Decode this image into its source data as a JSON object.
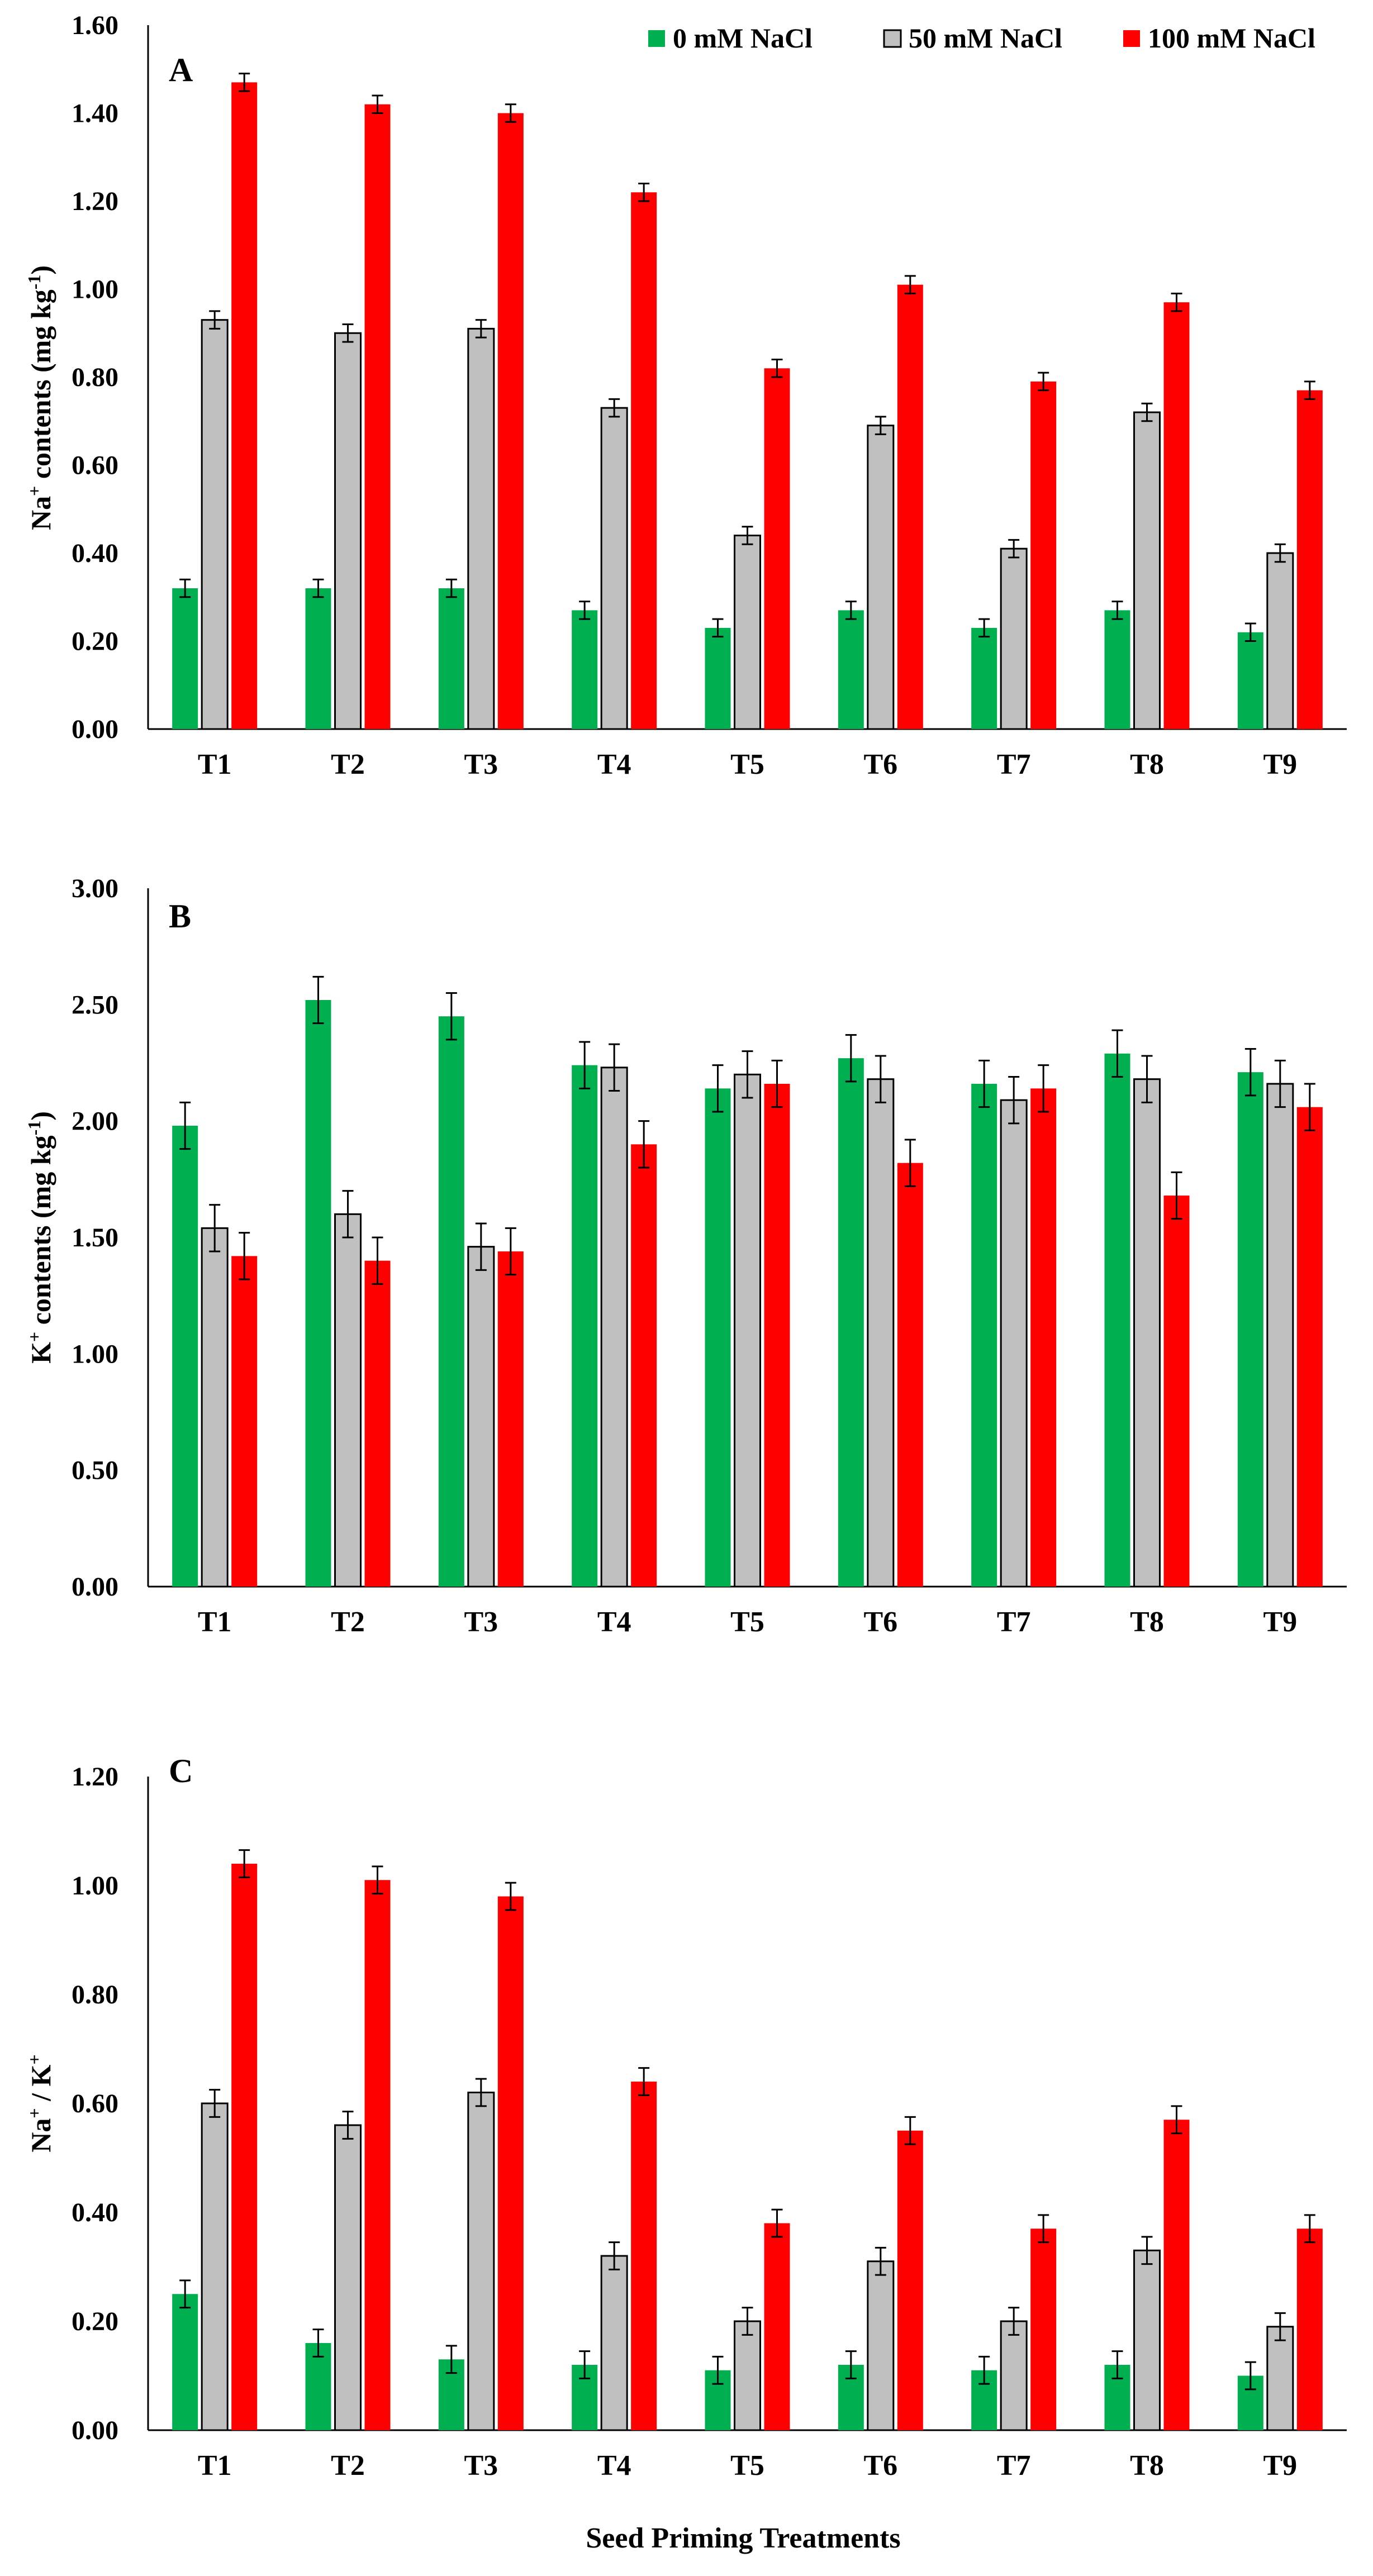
{
  "figure": {
    "xlabel": "Seed Priming Treatments",
    "legend": [
      {
        "name": "0 mM NaCl",
        "color": "#00b050"
      },
      {
        "name": "50 mM NaCl",
        "color": "#c0c0c0"
      },
      {
        "name": "100 mM NaCl",
        "color": "#ff0000"
      }
    ]
  },
  "chart_data": [
    {
      "type": "bar",
      "panel": "A",
      "ylabel": {
        "main": "Na",
        "sup1": "+",
        "mid": " contents (mg kg",
        "sup2": "-1",
        "end": ")"
      },
      "ylim": [
        0,
        1.6
      ],
      "yticks": [
        "0.00",
        "0.20",
        "0.40",
        "0.60",
        "0.80",
        "1.00",
        "1.20",
        "1.40",
        "1.60"
      ],
      "categories": [
        "T1",
        "T2",
        "T3",
        "T4",
        "T5",
        "T6",
        "T7",
        "T8",
        "T9"
      ],
      "series": [
        {
          "name": "0 mM NaCl",
          "values": [
            0.32,
            0.32,
            0.32,
            0.27,
            0.23,
            0.27,
            0.23,
            0.27,
            0.22
          ],
          "errors": [
            0.02,
            0.02,
            0.02,
            0.02,
            0.02,
            0.02,
            0.02,
            0.02,
            0.02
          ]
        },
        {
          "name": "50 mM NaCl",
          "values": [
            0.93,
            0.9,
            0.91,
            0.73,
            0.44,
            0.69,
            0.41,
            0.72,
            0.4
          ],
          "errors": [
            0.02,
            0.02,
            0.02,
            0.02,
            0.02,
            0.02,
            0.02,
            0.02,
            0.02
          ]
        },
        {
          "name": "100 mM NaCl",
          "values": [
            1.47,
            1.42,
            1.4,
            1.22,
            0.82,
            1.01,
            0.79,
            0.97,
            0.77
          ],
          "errors": [
            0.02,
            0.02,
            0.02,
            0.02,
            0.02,
            0.02,
            0.02,
            0.02,
            0.02
          ]
        }
      ]
    },
    {
      "type": "bar",
      "panel": "B",
      "ylabel": {
        "main": "K",
        "sup1": "+",
        "mid": " contents (mg kg",
        "sup2": "-1",
        "end": ")"
      },
      "ylim": [
        0,
        3.0
      ],
      "yticks": [
        "0.00",
        "0.50",
        "1.00",
        "1.50",
        "2.00",
        "2.50",
        "3.00"
      ],
      "categories": [
        "T1",
        "T2",
        "T3",
        "T4",
        "T5",
        "T6",
        "T7",
        "T8",
        "T9"
      ],
      "series": [
        {
          "name": "0 mM NaCl",
          "values": [
            1.98,
            2.52,
            2.45,
            2.24,
            2.14,
            2.27,
            2.16,
            2.29,
            2.21
          ],
          "errors": [
            0.1,
            0.1,
            0.1,
            0.1,
            0.1,
            0.1,
            0.1,
            0.1,
            0.1
          ]
        },
        {
          "name": "50 mM NaCl",
          "values": [
            1.54,
            1.6,
            1.46,
            2.23,
            2.2,
            2.18,
            2.09,
            2.18,
            2.16
          ],
          "errors": [
            0.1,
            0.1,
            0.1,
            0.1,
            0.1,
            0.1,
            0.1,
            0.1,
            0.1
          ]
        },
        {
          "name": "100 mM NaCl",
          "values": [
            1.42,
            1.4,
            1.44,
            1.9,
            2.16,
            1.82,
            2.14,
            1.68,
            2.06
          ],
          "errors": [
            0.1,
            0.1,
            0.1,
            0.1,
            0.1,
            0.1,
            0.1,
            0.1,
            0.1
          ]
        }
      ]
    },
    {
      "type": "bar",
      "panel": "C",
      "ylabel": {
        "main": "Na",
        "sup1": "+",
        "mid": " / K",
        "sup2": "+",
        "end": ""
      },
      "ylim": [
        0,
        1.2
      ],
      "yticks": [
        "0.00",
        "0.20",
        "0.40",
        "0.60",
        "0.80",
        "1.00",
        "1.20"
      ],
      "categories": [
        "T1",
        "T2",
        "T3",
        "T4",
        "T5",
        "T6",
        "T7",
        "T8",
        "T9"
      ],
      "series": [
        {
          "name": "0 mM NaCl",
          "values": [
            0.25,
            0.16,
            0.13,
            0.12,
            0.11,
            0.12,
            0.11,
            0.12,
            0.1
          ],
          "errors": [
            0.025,
            0.025,
            0.025,
            0.025,
            0.025,
            0.025,
            0.025,
            0.025,
            0.025
          ]
        },
        {
          "name": "50 mM NaCl",
          "values": [
            0.6,
            0.56,
            0.62,
            0.32,
            0.2,
            0.31,
            0.2,
            0.33,
            0.19
          ],
          "errors": [
            0.025,
            0.025,
            0.025,
            0.025,
            0.025,
            0.025,
            0.025,
            0.025,
            0.025
          ]
        },
        {
          "name": "100 mM NaCl",
          "values": [
            1.04,
            1.01,
            0.98,
            0.64,
            0.38,
            0.55,
            0.37,
            0.57,
            0.37
          ],
          "errors": [
            0.025,
            0.025,
            0.025,
            0.025,
            0.025,
            0.025,
            0.025,
            0.025,
            0.025
          ]
        }
      ]
    }
  ]
}
